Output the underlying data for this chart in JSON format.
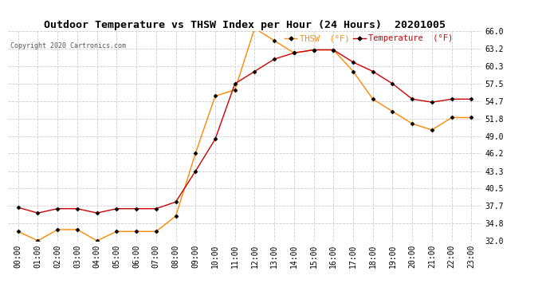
{
  "title": "Outdoor Temperature vs THSW Index per Hour (24 Hours)  20201005",
  "copyright": "Copyright 2020 Cartronics.com",
  "hours": [
    "00:00",
    "01:00",
    "02:00",
    "03:00",
    "04:00",
    "05:00",
    "06:00",
    "07:00",
    "08:00",
    "09:00",
    "10:00",
    "11:00",
    "12:00",
    "13:00",
    "14:00",
    "15:00",
    "16:00",
    "17:00",
    "18:00",
    "19:00",
    "20:00",
    "21:00",
    "22:00",
    "23:00"
  ],
  "temperature": [
    37.4,
    36.5,
    37.2,
    37.2,
    36.5,
    37.2,
    37.2,
    37.2,
    38.3,
    43.3,
    48.5,
    57.5,
    59.5,
    61.5,
    62.5,
    63.0,
    63.0,
    61.0,
    59.5,
    57.5,
    55.0,
    54.5,
    55.0,
    55.0
  ],
  "thsw": [
    33.5,
    32.0,
    33.8,
    33.8,
    32.0,
    33.5,
    33.5,
    33.5,
    36.0,
    46.2,
    55.5,
    56.5,
    66.5,
    64.5,
    62.5,
    63.0,
    63.0,
    59.5,
    55.0,
    53.0,
    51.0,
    50.0,
    52.0,
    52.0
  ],
  "temp_color": "#cc0000",
  "thsw_color": "#ff8800",
  "background_color": "#ffffff",
  "grid_color": "#cccccc",
  "ylim_min": 32.0,
  "ylim_max": 66.0,
  "ytick_labels": [
    "32.0",
    "34.8",
    "37.7",
    "40.5",
    "43.3",
    "46.2",
    "49.0",
    "51.8",
    "54.7",
    "57.5",
    "60.3",
    "63.2",
    "66.0"
  ],
  "ytick_values": [
    32.0,
    34.8,
    37.7,
    40.5,
    43.3,
    46.2,
    49.0,
    51.8,
    54.7,
    57.5,
    60.3,
    63.2,
    66.0
  ],
  "legend_thsw": "THSW  (°F)",
  "legend_temp": "Temperature  (°F)",
  "marker": "D",
  "marker_size": 2.5,
  "marker_color": "#000000",
  "line_width": 1.0,
  "title_fontsize": 9.5,
  "tick_fontsize": 7,
  "copyright_fontsize": 6
}
